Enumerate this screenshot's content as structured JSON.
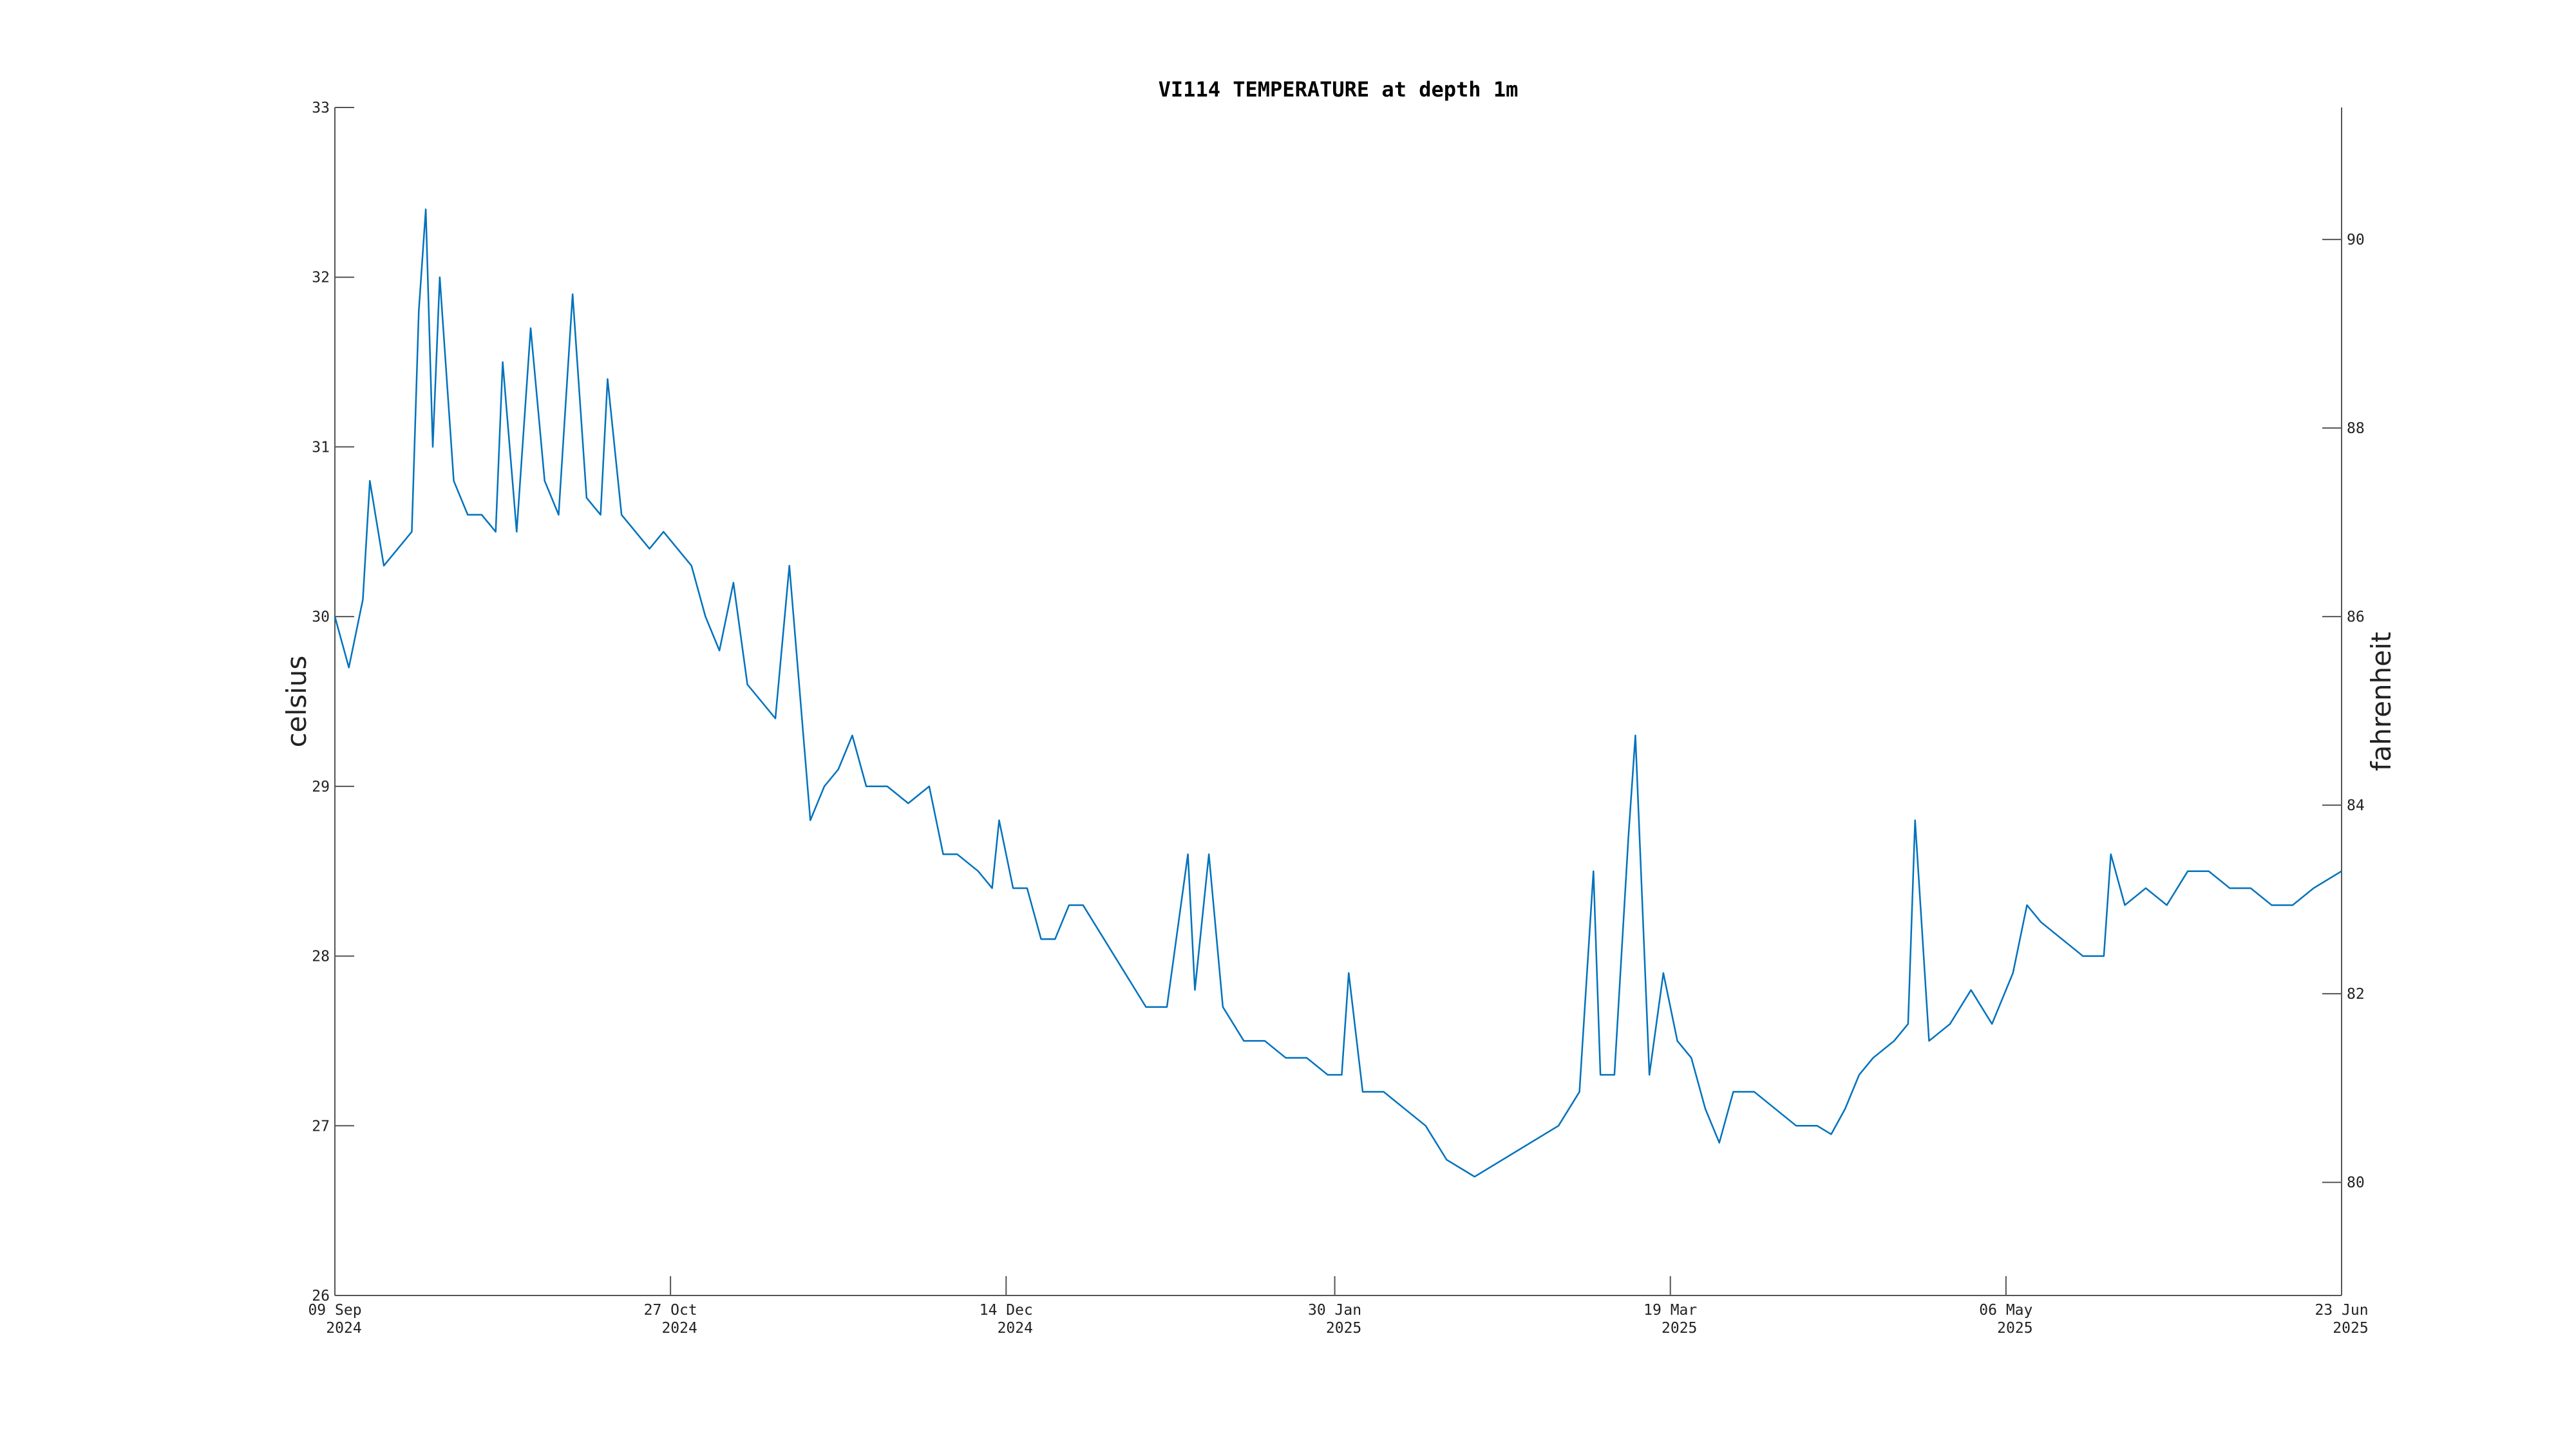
{
  "chart_data": {
    "type": "line",
    "title": "VI114 TEMPERATURE at depth 1m",
    "ylabel": "celsius",
    "y2label": "fahrenheit",
    "color": "#0072bd",
    "x": [
      "2024-09-09",
      "2024-09-11",
      "2024-09-13",
      "2024-09-14",
      "2024-09-16",
      "2024-09-18",
      "2024-09-20",
      "2024-09-21",
      "2024-09-22",
      "2024-09-23",
      "2024-09-24",
      "2024-09-26",
      "2024-09-28",
      "2024-09-30",
      "2024-10-02",
      "2024-10-03",
      "2024-10-05",
      "2024-10-07",
      "2024-10-09",
      "2024-10-11",
      "2024-10-13",
      "2024-10-15",
      "2024-10-17",
      "2024-10-18",
      "2024-10-20",
      "2024-10-22",
      "2024-10-24",
      "2024-10-26",
      "2024-10-28",
      "2024-10-30",
      "2024-11-01",
      "2024-11-03",
      "2024-11-05",
      "2024-11-07",
      "2024-11-09",
      "2024-11-11",
      "2024-11-13",
      "2024-11-15",
      "2024-11-16",
      "2024-11-18",
      "2024-11-20",
      "2024-11-22",
      "2024-11-24",
      "2024-11-27",
      "2024-11-30",
      "2024-12-03",
      "2024-12-05",
      "2024-12-07",
      "2024-12-10",
      "2024-12-12",
      "2024-12-13",
      "2024-12-15",
      "2024-12-17",
      "2024-12-19",
      "2024-12-21",
      "2024-12-23",
      "2024-12-25",
      "2024-12-28",
      "2024-12-31",
      "2025-01-03",
      "2025-01-06",
      "2025-01-09",
      "2025-01-10",
      "2025-01-12",
      "2025-01-14",
      "2025-01-17",
      "2025-01-20",
      "2025-01-23",
      "2025-01-26",
      "2025-01-29",
      "2025-01-31",
      "2025-02-01",
      "2025-02-03",
      "2025-02-06",
      "2025-02-09",
      "2025-02-12",
      "2025-02-15",
      "2025-02-19",
      "2025-02-23",
      "2025-02-27",
      "2025-03-03",
      "2025-03-06",
      "2025-03-08",
      "2025-03-09",
      "2025-03-11",
      "2025-03-13",
      "2025-03-14",
      "2025-03-16",
      "2025-03-18",
      "2025-03-20",
      "2025-03-22",
      "2025-03-24",
      "2025-03-26",
      "2025-03-28",
      "2025-03-31",
      "2025-04-03",
      "2025-04-06",
      "2025-04-09",
      "2025-04-11",
      "2025-04-13",
      "2025-04-15",
      "2025-04-17",
      "2025-04-20",
      "2025-04-22",
      "2025-04-23",
      "2025-04-25",
      "2025-04-28",
      "2025-05-01",
      "2025-05-04",
      "2025-05-07",
      "2025-05-09",
      "2025-05-11",
      "2025-05-14",
      "2025-05-17",
      "2025-05-20",
      "2025-05-21",
      "2025-05-23",
      "2025-05-26",
      "2025-05-29",
      "2025-06-01",
      "2025-06-04",
      "2025-06-07",
      "2025-06-10",
      "2025-06-13",
      "2025-06-16",
      "2025-06-19",
      "2025-06-23"
    ],
    "values": [
      30.0,
      29.7,
      30.1,
      30.8,
      30.3,
      30.4,
      30.5,
      31.8,
      32.4,
      31.0,
      32.0,
      30.8,
      30.6,
      30.6,
      30.5,
      31.5,
      30.5,
      31.7,
      30.8,
      30.6,
      31.9,
      30.7,
      30.6,
      31.4,
      30.6,
      30.5,
      30.4,
      30.5,
      30.4,
      30.3,
      30.0,
      29.8,
      30.2,
      29.6,
      29.5,
      29.4,
      30.3,
      29.3,
      28.8,
      29.0,
      29.1,
      29.3,
      29.0,
      29.0,
      28.9,
      29.0,
      28.6,
      28.6,
      28.5,
      28.4,
      28.8,
      28.4,
      28.4,
      28.1,
      28.1,
      28.3,
      28.3,
      28.1,
      27.9,
      27.7,
      27.7,
      28.6,
      27.8,
      28.6,
      27.7,
      27.5,
      27.5,
      27.4,
      27.4,
      27.3,
      27.3,
      27.9,
      27.2,
      27.2,
      27.1,
      27.0,
      26.8,
      26.7,
      26.8,
      26.9,
      27.0,
      27.2,
      28.5,
      27.3,
      27.3,
      28.7,
      29.3,
      27.3,
      27.9,
      27.5,
      27.4,
      27.1,
      26.9,
      27.2,
      27.2,
      27.1,
      27.0,
      27.0,
      26.95,
      27.1,
      27.3,
      27.4,
      27.5,
      27.6,
      28.8,
      27.5,
      27.6,
      27.8,
      27.6,
      27.9,
      28.3,
      28.2,
      28.1,
      28.0,
      28.0,
      28.6,
      28.3,
      28.4,
      28.3,
      28.5,
      28.5,
      28.4,
      28.4,
      28.3,
      28.3,
      28.4,
      28.5
    ],
    "xlim": [
      "2024-09-09",
      "2025-06-23"
    ],
    "xticks": [
      {
        "value": "2024-09-09",
        "label": [
          "09 Sep",
          "2024"
        ]
      },
      {
        "value": "2024-10-27",
        "label": [
          "27 Oct",
          "2024"
        ]
      },
      {
        "value": "2024-12-14",
        "label": [
          "14 Dec",
          "2024"
        ]
      },
      {
        "value": "2025-01-30",
        "label": [
          "30 Jan",
          "2025"
        ]
      },
      {
        "value": "2025-03-19",
        "label": [
          "19 Mar",
          "2025"
        ]
      },
      {
        "value": "2025-05-06",
        "label": [
          "06 May",
          "2025"
        ]
      },
      {
        "value": "2025-06-23",
        "label": [
          "23 Jun",
          "2025"
        ]
      }
    ],
    "ylim": [
      26,
      33
    ],
    "yticks": [
      26,
      27,
      28,
      29,
      30,
      31,
      32,
      33
    ],
    "y2lim": [
      78.8,
      91.4
    ],
    "y2ticks": [
      80,
      82,
      84,
      86,
      88,
      90
    ],
    "grid": false
  }
}
